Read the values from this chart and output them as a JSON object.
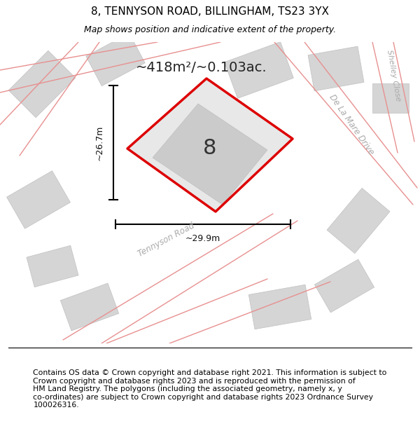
{
  "title": "8, TENNYSON ROAD, BILLINGHAM, TS23 3YX",
  "subtitle": "Map shows position and indicative extent of the property.",
  "footer_text": "Contains OS data © Crown copyright and database right 2021. This information is subject to\nCrown copyright and database rights 2023 and is reproduced with the permission of\nHM Land Registry. The polygons (including the associated geometry, namely x, y\nco-ordinates) are subject to Crown copyright and database rights 2023 Ordnance Survey\n100026316.",
  "area_label": "~418m²/~0.103ac.",
  "house_number": "8",
  "dim_width": "~29.9m",
  "dim_height": "~26.7m",
  "road_label_tennyson": "Tennyson Road",
  "road_label_delamare": "De La Mare Drive",
  "road_label_shelley": "Shelley Close",
  "map_bg": "#f0f0f0",
  "road_line_color": "#e89090",
  "building_color": "#d5d5d5",
  "building_edge_color": "#c0c0c0",
  "property_fill": "#e8e8e8",
  "inner_building_color": "#cbcbcb",
  "red_color": "#dd0000",
  "title_fontsize": 11,
  "subtitle_fontsize": 9,
  "footer_fontsize": 7.8,
  "area_fontsize": 14,
  "number_fontsize": 22,
  "street_label_fontsize": 8.5,
  "dim_fontsize": 9
}
